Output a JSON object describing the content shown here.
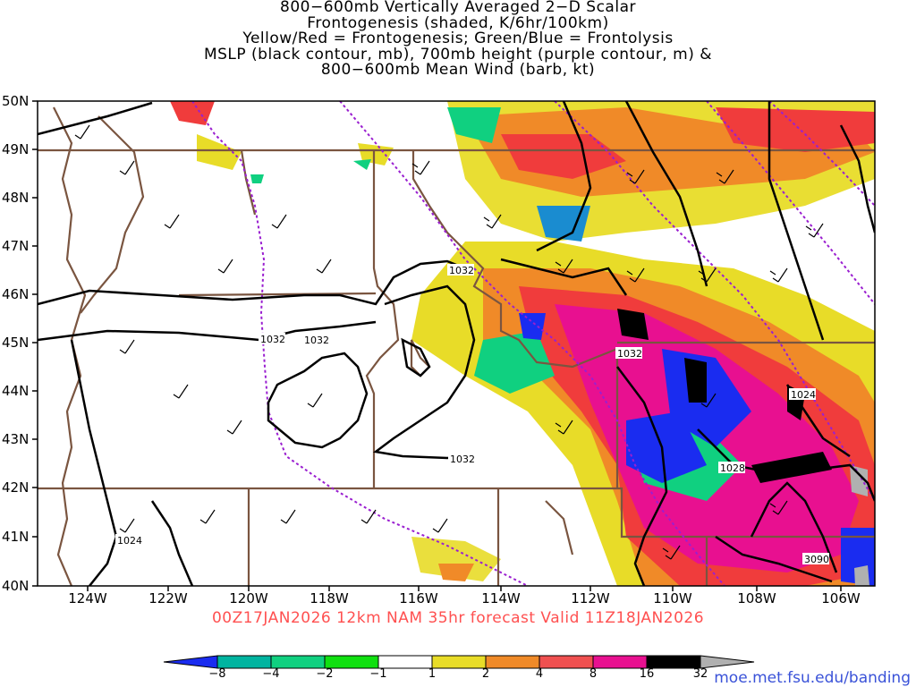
{
  "title": {
    "lines": [
      "800−600mb Vertically Averaged 2−D Scalar",
      "Frontogenesis (shaded, K/6hr/100km)",
      "Yellow/Red = Frontogenesis;  Green/Blue = Frontolysis",
      "MSLP (black contour, mb), 700mb height (purple contour, m) &",
      "800−600mb Mean Wind (barb, kt)"
    ]
  },
  "map": {
    "lat_labels": [
      "50N",
      "49N",
      "48N",
      "47N",
      "46N",
      "45N",
      "44N",
      "43N",
      "42N",
      "41N",
      "40N"
    ],
    "lon_labels": [
      "124W",
      "122W",
      "120W",
      "118W",
      "116W",
      "114W",
      "112W",
      "110W",
      "108W",
      "106W"
    ],
    "contour_labels": [
      "1032",
      "1032",
      "1032",
      "1032",
      "1032",
      "1024",
      "1024",
      "1028",
      "3090"
    ],
    "colors": {
      "mslp_contour": "#000000",
      "height_contour": "#9a1fd0",
      "boundaries": "#7a5540",
      "frontolysis_strong": "#1030f0",
      "frontolysis": "#00c870",
      "frontogenesis_weak": "#e8dc28",
      "frontogenesis_mod": "#f08a28",
      "frontogenesis_strong": "#f03c3c",
      "frontogenesis_vstrong": "#e80a8c"
    }
  },
  "valid_line": "00Z17JAN2026 12km NAM 35hr forecast Valid 11Z18JAN2026",
  "colorbar": {
    "labels": [
      "−8",
      "−4",
      "−2",
      "−1",
      "1",
      "2",
      "4",
      "8",
      "16",
      "32"
    ],
    "colors": [
      "#1a2cf0",
      "#00b4a0",
      "#10d080",
      "#10e010",
      "#ffffff",
      "#e8dc28",
      "#f08a28",
      "#f05050",
      "#e81090",
      "#000000",
      "#b0b0b0"
    ]
  },
  "credit": "moe.met.fsu.edu/banding"
}
